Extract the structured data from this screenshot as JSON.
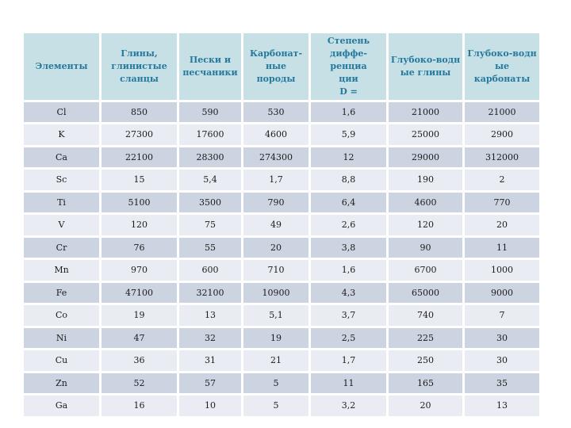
{
  "colors": {
    "header_bg": "#c6e0e5",
    "header_text": "#24799e",
    "row_dark": "#ccd3e1",
    "row_light": "#e9ecf3",
    "cell_text": "#1c1c1c",
    "page_bg": "#ffffff"
  },
  "table": {
    "columns": [
      {
        "label": "Элементы"
      },
      {
        "label": "Глины,\nглинистые\nсланцы"
      },
      {
        "label": "Пески и\nпесчаники"
      },
      {
        "label": "Карбонат-ные\nпороды"
      },
      {
        "label": "Степень\nдиффе-ренциа\nции\nD ="
      },
      {
        "label": "Глубоко-водн\nые глины"
      },
      {
        "label": "Глубоко-водн\nые карбонаты"
      }
    ],
    "rows": [
      {
        "element": "Cl",
        "values": [
          "850",
          "590",
          "530",
          "1,6",
          "21000",
          "21000"
        ]
      },
      {
        "element": "K",
        "values": [
          "27300",
          "17600",
          "4600",
          "5,9",
          "25000",
          "2900"
        ]
      },
      {
        "element": "Ca",
        "values": [
          "22100",
          "28300",
          "274300",
          "12",
          "29000",
          "312000"
        ]
      },
      {
        "element": "Sc",
        "values": [
          "15",
          "5,4",
          "1,7",
          "8,8",
          "190",
          "2"
        ]
      },
      {
        "element": "Ti",
        "values": [
          "5100",
          "3500",
          "790",
          "6,4",
          "4600",
          "770"
        ]
      },
      {
        "element": "V",
        "values": [
          "120",
          "75",
          "49",
          "2,6",
          "120",
          "20"
        ]
      },
      {
        "element": "Cr",
        "values": [
          "76",
          "55",
          "20",
          "3,8",
          "90",
          "11"
        ]
      },
      {
        "element": "Mn",
        "values": [
          "970",
          "600",
          "710",
          "1,6",
          "6700",
          "1000"
        ]
      },
      {
        "element": "Fe",
        "values": [
          "47100",
          "32100",
          "10900",
          "4,3",
          "65000",
          "9000"
        ]
      },
      {
        "element": "Co",
        "values": [
          "19",
          "13",
          "5,1",
          "3,7",
          "740",
          "7"
        ]
      },
      {
        "element": "Ni",
        "values": [
          "47",
          "32",
          "19",
          "2,5",
          "225",
          "30"
        ]
      },
      {
        "element": "Cu",
        "values": [
          "36",
          "31",
          "21",
          "1,7",
          "250",
          "30"
        ]
      },
      {
        "element": "Zn",
        "values": [
          "52",
          "57",
          "5",
          "11",
          "165",
          "35"
        ]
      },
      {
        "element": "Ga",
        "values": [
          "16",
          "10",
          "5",
          "3,2",
          "20",
          "13"
        ]
      }
    ]
  }
}
